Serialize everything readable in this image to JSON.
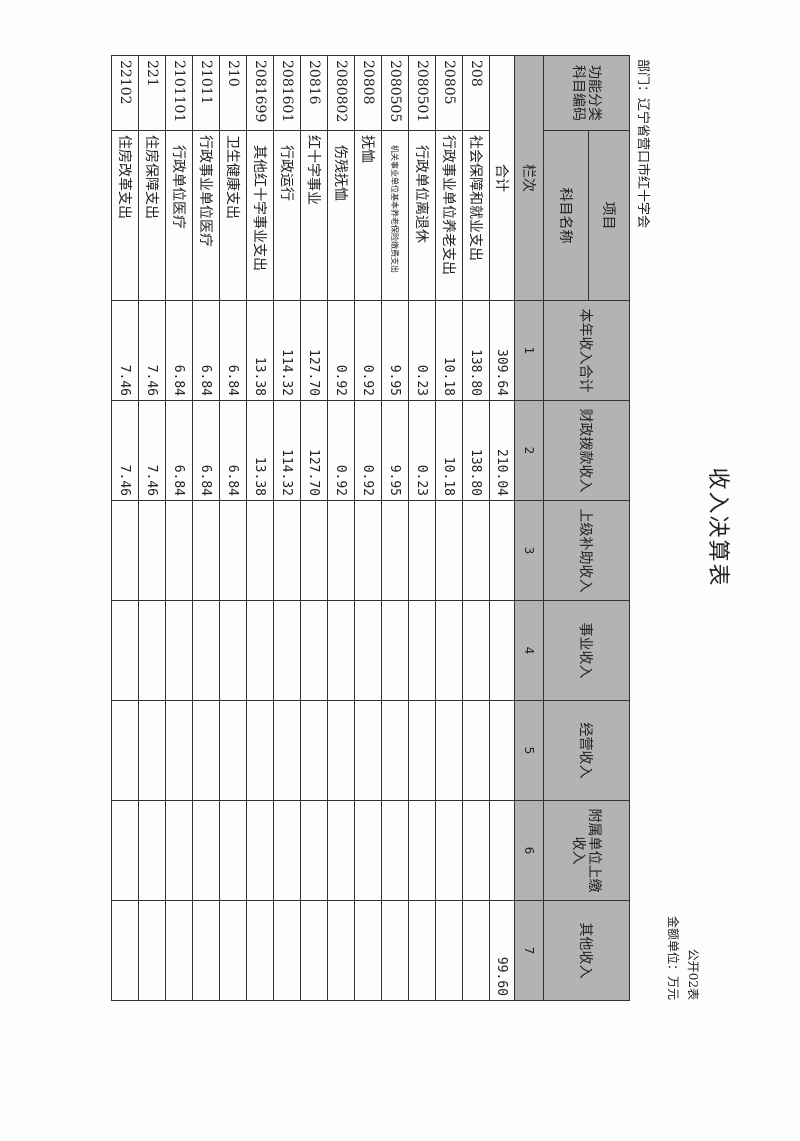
{
  "header": {
    "title": "收入决算表",
    "form_no": "公开02表",
    "unit": "金额单位：万元",
    "department": "部门：辽宁省营口市红十字会"
  },
  "table": {
    "code_header": "功能分类科目编码",
    "project_header": "项目",
    "name_header": "科目名称",
    "value_headers": [
      "本年收入合计",
      "财政拨款收入",
      "上级补助收入",
      "事业收入",
      "经营收入",
      "附属单位上缴收入",
      "其他收入"
    ],
    "seq_label": "栏次",
    "seq": [
      "1",
      "2",
      "3",
      "4",
      "5",
      "6",
      "7"
    ],
    "total": {
      "label": "合计",
      "values": [
        "309.64",
        "210.04",
        "",
        "",
        "",
        "",
        "99.60"
      ]
    },
    "rows": [
      {
        "code": "208",
        "name": "社会保障和就业支出",
        "values": [
          "138.80",
          "138.80",
          "",
          "",
          "",
          "",
          ""
        ]
      },
      {
        "code": "20805",
        "name": "行政事业单位养老支出",
        "values": [
          "10.18",
          "10.18",
          "",
          "",
          "",
          "",
          ""
        ]
      },
      {
        "code": "2080501",
        "name": "行政单位离退休",
        "values": [
          "0.23",
          "0.23",
          "",
          "",
          "",
          "",
          ""
        ]
      },
      {
        "code": "2080505",
        "name": "机关事业单位基本养老保险缴费支出",
        "values": [
          "9.95",
          "9.95",
          "",
          "",
          "",
          "",
          ""
        ]
      },
      {
        "code": "20808",
        "name": "抚恤",
        "values": [
          "0.92",
          "0.92",
          "",
          "",
          "",
          "",
          ""
        ]
      },
      {
        "code": "2080802",
        "name": "伤残抚恤",
        "values": [
          "0.92",
          "0.92",
          "",
          "",
          "",
          "",
          ""
        ]
      },
      {
        "code": "20816",
        "name": "红十字事业",
        "values": [
          "127.70",
          "127.70",
          "",
          "",
          "",
          "",
          ""
        ]
      },
      {
        "code": "2081601",
        "name": "行政运行",
        "values": [
          "114.32",
          "114.32",
          "",
          "",
          "",
          "",
          ""
        ]
      },
      {
        "code": "2081699",
        "name": "其他红十字事业支出",
        "values": [
          "13.38",
          "13.38",
          "",
          "",
          "",
          "",
          ""
        ]
      },
      {
        "code": "210",
        "name": "卫生健康支出",
        "values": [
          "6.84",
          "6.84",
          "",
          "",
          "",
          "",
          ""
        ]
      },
      {
        "code": "21011",
        "name": "行政事业单位医疗",
        "values": [
          "6.84",
          "6.84",
          "",
          "",
          "",
          "",
          ""
        ]
      },
      {
        "code": "2101101",
        "name": "行政单位医疗",
        "values": [
          "6.84",
          "6.84",
          "",
          "",
          "",
          "",
          ""
        ]
      },
      {
        "code": "221",
        "name": "住房保障支出",
        "values": [
          "7.46",
          "7.46",
          "",
          "",
          "",
          "",
          ""
        ]
      },
      {
        "code": "22102",
        "name": "住房改革支出",
        "values": [
          "7.46",
          "7.46",
          "",
          "",
          "",
          "",
          ""
        ]
      }
    ]
  }
}
